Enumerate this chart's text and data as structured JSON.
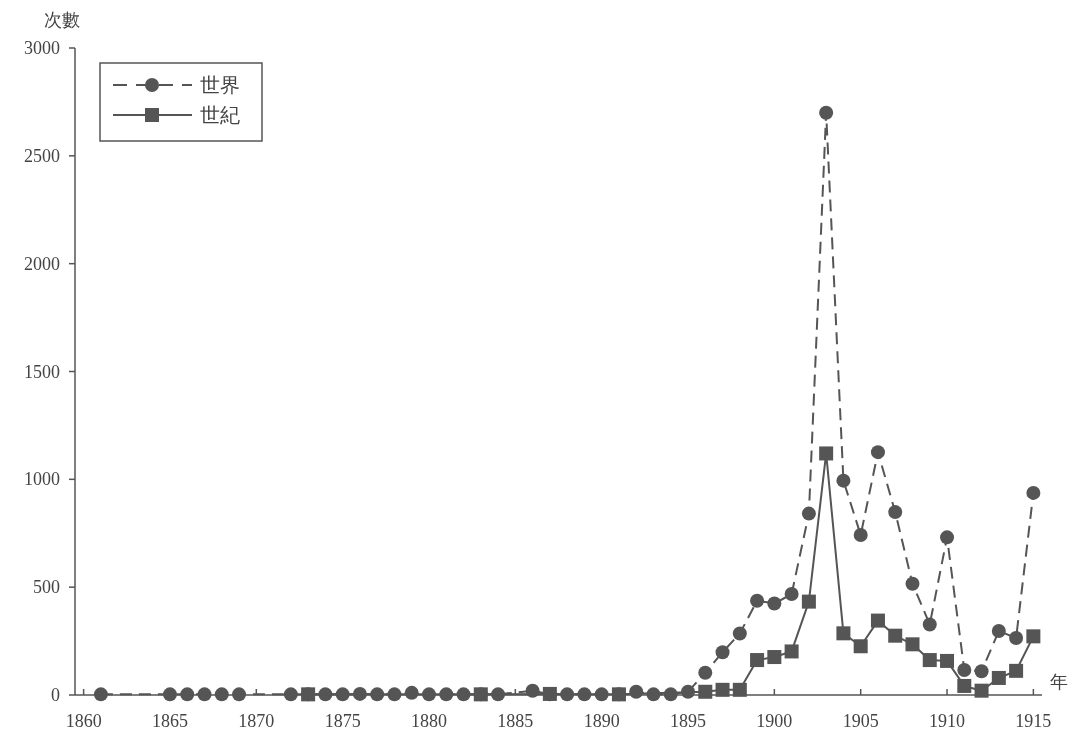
{
  "chart_data": {
    "type": "line",
    "xlabel": "年",
    "ylabel": "次數",
    "xlim": [
      1859.5,
      1915.5
    ],
    "xticks": [
      1860,
      1865,
      1870,
      1875,
      1880,
      1885,
      1890,
      1895,
      1900,
      1905,
      1910,
      1915
    ],
    "ylim": [
      0,
      3000
    ],
    "yticks": [
      0,
      500,
      1000,
      1500,
      2000,
      2500,
      3000
    ],
    "grid": false,
    "legend": "top left",
    "series": [
      {
        "name": "世界",
        "color": "#555555",
        "marker": "circle",
        "line_style": "dashed",
        "x": [
          1861,
          1865,
          1866,
          1867,
          1868,
          1869,
          1872,
          1873,
          1874,
          1875,
          1876,
          1877,
          1878,
          1879,
          1880,
          1881,
          1882,
          1883,
          1884,
          1886,
          1887,
          1888,
          1889,
          1890,
          1891,
          1892,
          1893,
          1894,
          1895,
          1896,
          1897,
          1898,
          1899,
          1900,
          1901,
          1902,
          1903,
          1904,
          1905,
          1906,
          1907,
          1908,
          1909,
          1910,
          1911,
          1912,
          1913,
          1914,
          1915
        ],
        "values": [
          3,
          3,
          3,
          3,
          3,
          3,
          3,
          3,
          3,
          3,
          5,
          3,
          3,
          10,
          3,
          3,
          3,
          3,
          3,
          20,
          3,
          3,
          3,
          3,
          3,
          15,
          3,
          3,
          15,
          103,
          198,
          285,
          437,
          424,
          468,
          841,
          2700,
          994,
          742,
          1126,
          848,
          516,
          327,
          731,
          116,
          110,
          297,
          264,
          937
        ]
      },
      {
        "name": "世紀",
        "color": "#555555",
        "marker": "square",
        "line_style": "solid",
        "x": [
          1873,
          1883,
          1887,
          1891,
          1896,
          1897,
          1898,
          1899,
          1900,
          1901,
          1902,
          1903,
          1904,
          1905,
          1906,
          1907,
          1908,
          1909,
          1910,
          1911,
          1912,
          1913,
          1914,
          1915
        ],
        "values": [
          3,
          3,
          5,
          3,
          15,
          24,
          24,
          162,
          176,
          202,
          433,
          1120,
          286,
          226,
          345,
          275,
          235,
          162,
          158,
          42,
          20,
          79,
          112,
          272
        ]
      }
    ]
  }
}
